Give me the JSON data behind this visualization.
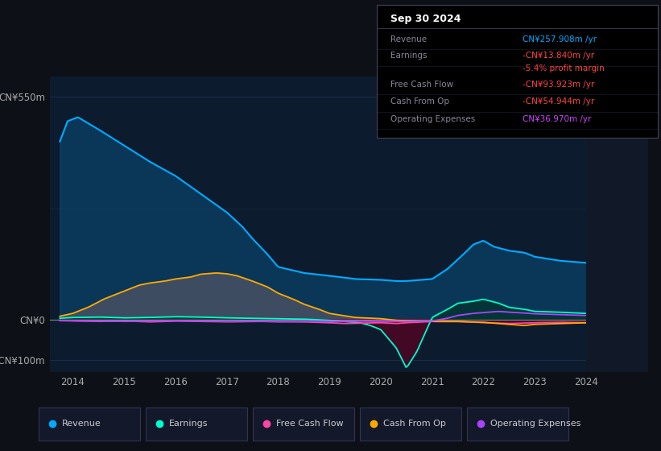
{
  "bg_color": "#0d1117",
  "chart_bg": "#0d1b2e",
  "chart_bg_right": "#111827",
  "grid_color": "#1e3050",
  "title_box": {
    "date": "Sep 30 2024",
    "rows": [
      {
        "label": "Revenue",
        "value": "CN¥257.908m /yr",
        "value_color": "#00aaff"
      },
      {
        "label": "Earnings",
        "value": "-CN¥13.840m /yr",
        "value_color": "#ff4444"
      },
      {
        "label": "",
        "value": "-5.4% profit margin",
        "value_color": "#ff4444"
      },
      {
        "label": "Free Cash Flow",
        "value": "-CN¥93.923m /yr",
        "value_color": "#ff4444"
      },
      {
        "label": "Cash From Op",
        "value": "-CN¥54.944m /yr",
        "value_color": "#ff4444"
      },
      {
        "label": "Operating Expenses",
        "value": "CN¥36.970m /yr",
        "value_color": "#cc44ff"
      }
    ]
  },
  "ylim": [
    -130,
    600
  ],
  "ytick_vals": [
    -100,
    0,
    550
  ],
  "ytick_labels": [
    "-CN¥100m",
    "CN¥0",
    "CN¥550m"
  ],
  "xtick_years": [
    2014,
    2015,
    2016,
    2017,
    2018,
    2019,
    2020,
    2021,
    2022,
    2023,
    2024
  ],
  "xmin": 2013.55,
  "xmax": 2025.2,
  "series": {
    "revenue": {
      "color": "#00aaff",
      "label": "Revenue"
    },
    "earnings": {
      "color": "#00ffcc",
      "label": "Earnings"
    },
    "free_cash_flow": {
      "color": "#ff44aa",
      "label": "Free Cash Flow"
    },
    "cash_from_op": {
      "color": "#ffaa00",
      "label": "Cash From Op"
    },
    "operating_expenses": {
      "color": "#aa44ff",
      "label": "Operating Expenses"
    }
  },
  "legend_items": [
    {
      "label": "Revenue",
      "color": "#00aaff"
    },
    {
      "label": "Earnings",
      "color": "#00ffcc"
    },
    {
      "label": "Free Cash Flow",
      "color": "#ff44aa"
    },
    {
      "label": "Cash From Op",
      "color": "#ffaa00"
    },
    {
      "label": "Operating Expenses",
      "color": "#aa44ff"
    }
  ]
}
